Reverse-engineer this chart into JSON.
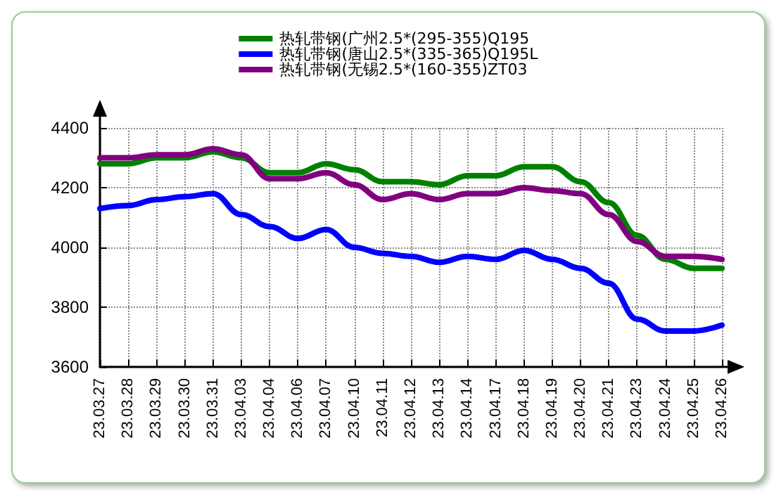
{
  "chart_data": {
    "type": "line",
    "categories": [
      "23.03.27",
      "23.03.28",
      "23.03.29",
      "23.03.30",
      "23.03.31",
      "23.04.03",
      "23.04.04",
      "23.04.06",
      "23.04.07",
      "23.04.10",
      "23.04.11",
      "23.04.12",
      "23.04.13",
      "23.04.14",
      "23.04.17",
      "23.04.18",
      "23.04.19",
      "23.04.20",
      "23.04.21",
      "23.04.23",
      "23.04.24",
      "23.04.25",
      "23.04.26"
    ],
    "series": [
      {
        "name": "热轧带钢(广州2.5*(295-355)Q195",
        "color": "#008000",
        "values": [
          4280,
          4280,
          4300,
          4300,
          4320,
          4300,
          4250,
          4250,
          4280,
          4260,
          4220,
          4220,
          4210,
          4240,
          4240,
          4270,
          4270,
          4220,
          4150,
          4040,
          3960,
          3930,
          3930
        ]
      },
      {
        "name": "热轧带钢(唐山2.5*(335-365)Q195L",
        "color": "#0000ff",
        "values": [
          4130,
          4140,
          4160,
          4170,
          4180,
          4110,
          4070,
          4030,
          4060,
          4000,
          3980,
          3970,
          3950,
          3970,
          3960,
          3990,
          3960,
          3930,
          3880,
          3760,
          3720,
          3720,
          3740
        ]
      },
      {
        "name": "热轧带钢(无锡2.5*(160-355)ZT03",
        "color": "#800080",
        "values": [
          4300,
          4300,
          4310,
          4310,
          4330,
          4310,
          4230,
          4230,
          4250,
          4210,
          4160,
          4180,
          4160,
          4180,
          4180,
          4200,
          4190,
          4180,
          4110,
          4020,
          3970,
          3970,
          3960
        ]
      }
    ],
    "ylim": [
      3600,
      4400
    ],
    "yticks": [
      3600,
      3800,
      4000,
      4200,
      4400
    ],
    "grid": true,
    "legend": "top",
    "marker": "none",
    "line_style": "solid"
  }
}
